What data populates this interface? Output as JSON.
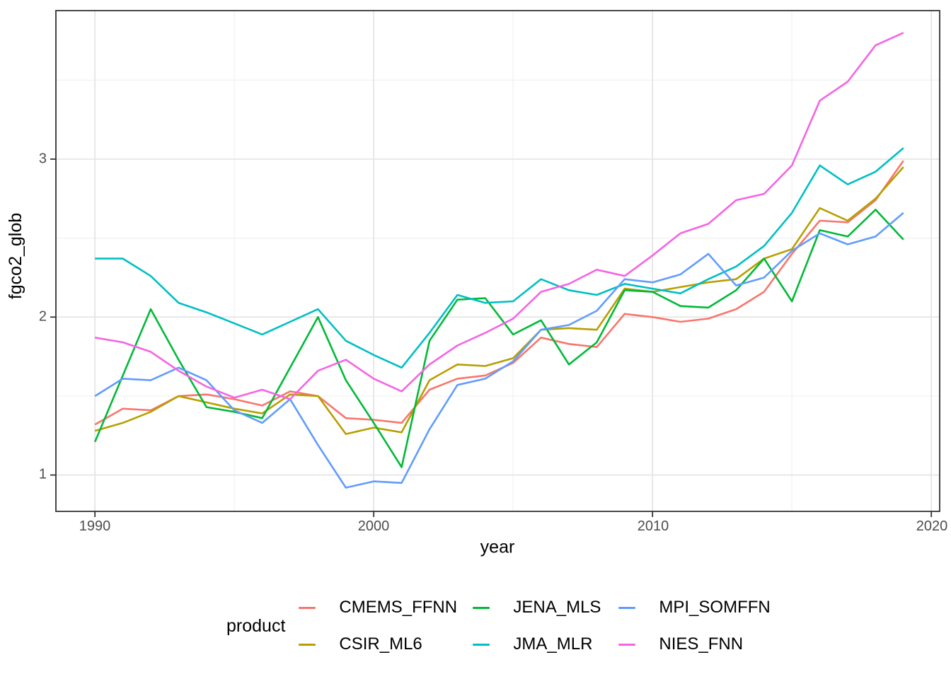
{
  "figure": {
    "y_axis": {
      "label": "fgco2_glob",
      "ticks": [
        "3",
        "2",
        "1"
      ]
    },
    "x_axis": {
      "label": "year",
      "ticks": [
        "1990",
        "2000",
        "2010",
        "2020"
      ]
    },
    "legend": {
      "title": "product",
      "items": [
        {
          "label": "CMEMS_FFNN",
          "color": "#F8766D"
        },
        {
          "label": "CSIR_ML6",
          "color": "#B79F00"
        },
        {
          "label": "JENA_MLS",
          "color": "#00BA38"
        },
        {
          "label": "JMA_MLR",
          "color": "#00BFC4"
        },
        {
          "label": "MPI_SOMFFN",
          "color": "#619CFF"
        },
        {
          "label": "NIES_FNN",
          "color": "#F564E3"
        }
      ]
    }
  },
  "chart_data": {
    "type": "line",
    "title": "",
    "xlabel": "year",
    "ylabel": "fgco2_glob",
    "legend_title": "product",
    "legend_position": "bottom",
    "grid": true,
    "xlim": [
      1988.6,
      2020.3
    ],
    "ylim": [
      0.77,
      3.94
    ],
    "x_ticks_major": [
      1990,
      2000,
      2010,
      2020
    ],
    "x_ticks_minor": [
      1995,
      2005,
      2015
    ],
    "y_ticks_major": [
      1,
      2,
      3
    ],
    "y_ticks_minor": [
      1.5,
      2.5,
      3.5
    ],
    "x": [
      1990,
      1991,
      1992,
      1993,
      1994,
      1995,
      1996,
      1997,
      1998,
      1999,
      2000,
      2001,
      2002,
      2003,
      2004,
      2005,
      2006,
      2007,
      2008,
      2009,
      2010,
      2011,
      2012,
      2013,
      2014,
      2015,
      2016,
      2017,
      2018,
      2019
    ],
    "series": [
      {
        "name": "CMEMS_FFNN",
        "color": "#F8766D",
        "values": [
          1.32,
          1.42,
          1.41,
          1.5,
          1.51,
          1.48,
          1.44,
          1.53,
          1.5,
          1.36,
          1.35,
          1.33,
          1.54,
          1.61,
          1.63,
          1.71,
          1.87,
          1.83,
          1.81,
          2.02,
          2.0,
          1.97,
          1.99,
          2.05,
          2.16,
          2.4,
          2.61,
          2.6,
          2.74,
          2.99
        ]
      },
      {
        "name": "CSIR_ML6",
        "color": "#B79F00",
        "values": [
          1.28,
          1.33,
          1.4,
          1.5,
          1.46,
          1.42,
          1.39,
          1.51,
          1.5,
          1.26,
          1.3,
          1.27,
          1.6,
          1.7,
          1.69,
          1.74,
          1.92,
          1.93,
          1.92,
          2.18,
          2.16,
          2.19,
          2.22,
          2.24,
          2.37,
          2.43,
          2.69,
          2.61,
          2.75,
          2.95
        ]
      },
      {
        "name": "JENA_MLS",
        "color": "#00BA38",
        "values": [
          1.21,
          1.63,
          2.05,
          1.73,
          1.43,
          1.4,
          1.36,
          1.68,
          2.0,
          1.6,
          1.33,
          1.05,
          1.85,
          2.11,
          2.12,
          1.89,
          1.98,
          1.7,
          1.84,
          2.17,
          2.16,
          2.07,
          2.06,
          2.17,
          2.37,
          2.1,
          2.55,
          2.51,
          2.68,
          2.49
        ]
      },
      {
        "name": "JMA_MLR",
        "color": "#00BFC4",
        "values": [
          2.37,
          2.37,
          2.26,
          2.09,
          2.03,
          1.96,
          1.89,
          1.97,
          2.05,
          1.85,
          1.76,
          1.68,
          1.9,
          2.14,
          2.09,
          2.1,
          2.24,
          2.17,
          2.14,
          2.21,
          2.18,
          2.15,
          2.24,
          2.32,
          2.45,
          2.66,
          2.96,
          2.84,
          2.92,
          3.07
        ]
      },
      {
        "name": "MPI_SOMFFN",
        "color": "#619CFF",
        "values": [
          1.5,
          1.61,
          1.6,
          1.68,
          1.6,
          1.41,
          1.33,
          1.48,
          1.19,
          0.92,
          0.96,
          0.95,
          1.29,
          1.57,
          1.61,
          1.72,
          1.92,
          1.95,
          2.04,
          2.24,
          2.22,
          2.27,
          2.4,
          2.2,
          2.25,
          2.42,
          2.53,
          2.46,
          2.51,
          2.66
        ]
      },
      {
        "name": "NIES_FNN",
        "color": "#F564E3",
        "values": [
          1.87,
          1.84,
          1.78,
          1.66,
          1.56,
          1.49,
          1.54,
          1.48,
          1.66,
          1.73,
          1.61,
          1.53,
          1.7,
          1.82,
          1.9,
          1.99,
          2.16,
          2.21,
          2.3,
          2.26,
          2.39,
          2.53,
          2.59,
          2.74,
          2.78,
          2.96,
          3.37,
          3.49,
          3.72,
          3.8
        ]
      }
    ]
  }
}
